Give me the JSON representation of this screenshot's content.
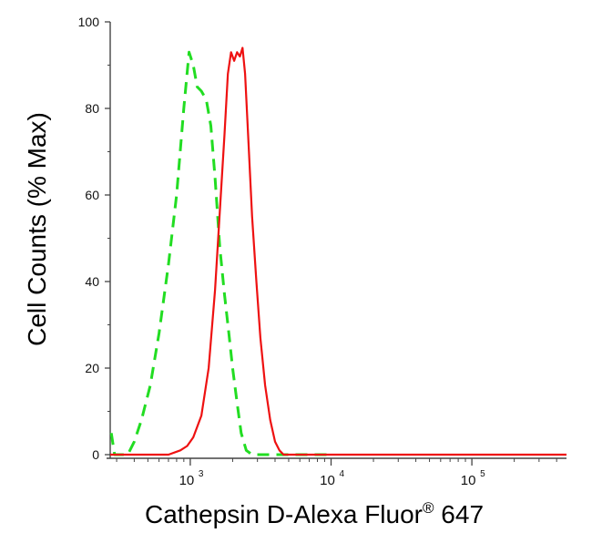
{
  "chart_data": {
    "type": "line",
    "xscale": "log",
    "xlim": [
      270,
      470000
    ],
    "ylim": [
      0,
      100
    ],
    "ylabel": "Cell Counts (% Max)",
    "xlabel": {
      "main": "Cathepsin D-Alexa Fluor",
      "superscript": "®",
      "suffix": " 647"
    },
    "yticks": [
      0,
      20,
      40,
      60,
      80,
      100
    ],
    "xticks": [
      {
        "value": 1000,
        "base": "10",
        "exp": "3"
      },
      {
        "value": 10000,
        "base": "10",
        "exp": "4"
      },
      {
        "value": 100000,
        "base": "10",
        "exp": "5"
      }
    ],
    "series": [
      {
        "color": "#22dd22",
        "style": "dashed",
        "x": [
          275,
          290,
          305,
          330,
          360,
          400,
          450,
          520,
          600,
          700,
          800,
          900,
          980,
          1050,
          1120,
          1200,
          1300,
          1400,
          1500,
          1620,
          1750,
          1880,
          2000,
          2150,
          2300,
          2500,
          2750,
          3100,
          4000,
          6000,
          10000
        ],
        "y": [
          5,
          0,
          0,
          0,
          0,
          3,
          8,
          16,
          28,
          44,
          60,
          80,
          93,
          90,
          85,
          84,
          82,
          76,
          64,
          48,
          37,
          28,
          20,
          12,
          5,
          1,
          0,
          0,
          0,
          0,
          0
        ]
      },
      {
        "color": "#ee1111",
        "style": "solid",
        "x": [
          270,
          500,
          700,
          850,
          950,
          1050,
          1200,
          1350,
          1500,
          1620,
          1750,
          1850,
          1950,
          2050,
          2150,
          2250,
          2350,
          2450,
          2600,
          2750,
          2950,
          3150,
          3400,
          3700,
          4000,
          4300,
          4600,
          5000,
          6000,
          10000,
          50000,
          200000,
          470000
        ],
        "y": [
          0,
          0,
          0,
          1,
          2,
          4,
          9,
          20,
          38,
          56,
          74,
          88,
          93,
          91,
          93,
          92,
          94,
          88,
          71,
          55,
          40,
          27,
          16,
          8,
          3,
          1,
          0,
          0,
          0,
          0,
          0,
          0,
          0
        ]
      }
    ]
  }
}
